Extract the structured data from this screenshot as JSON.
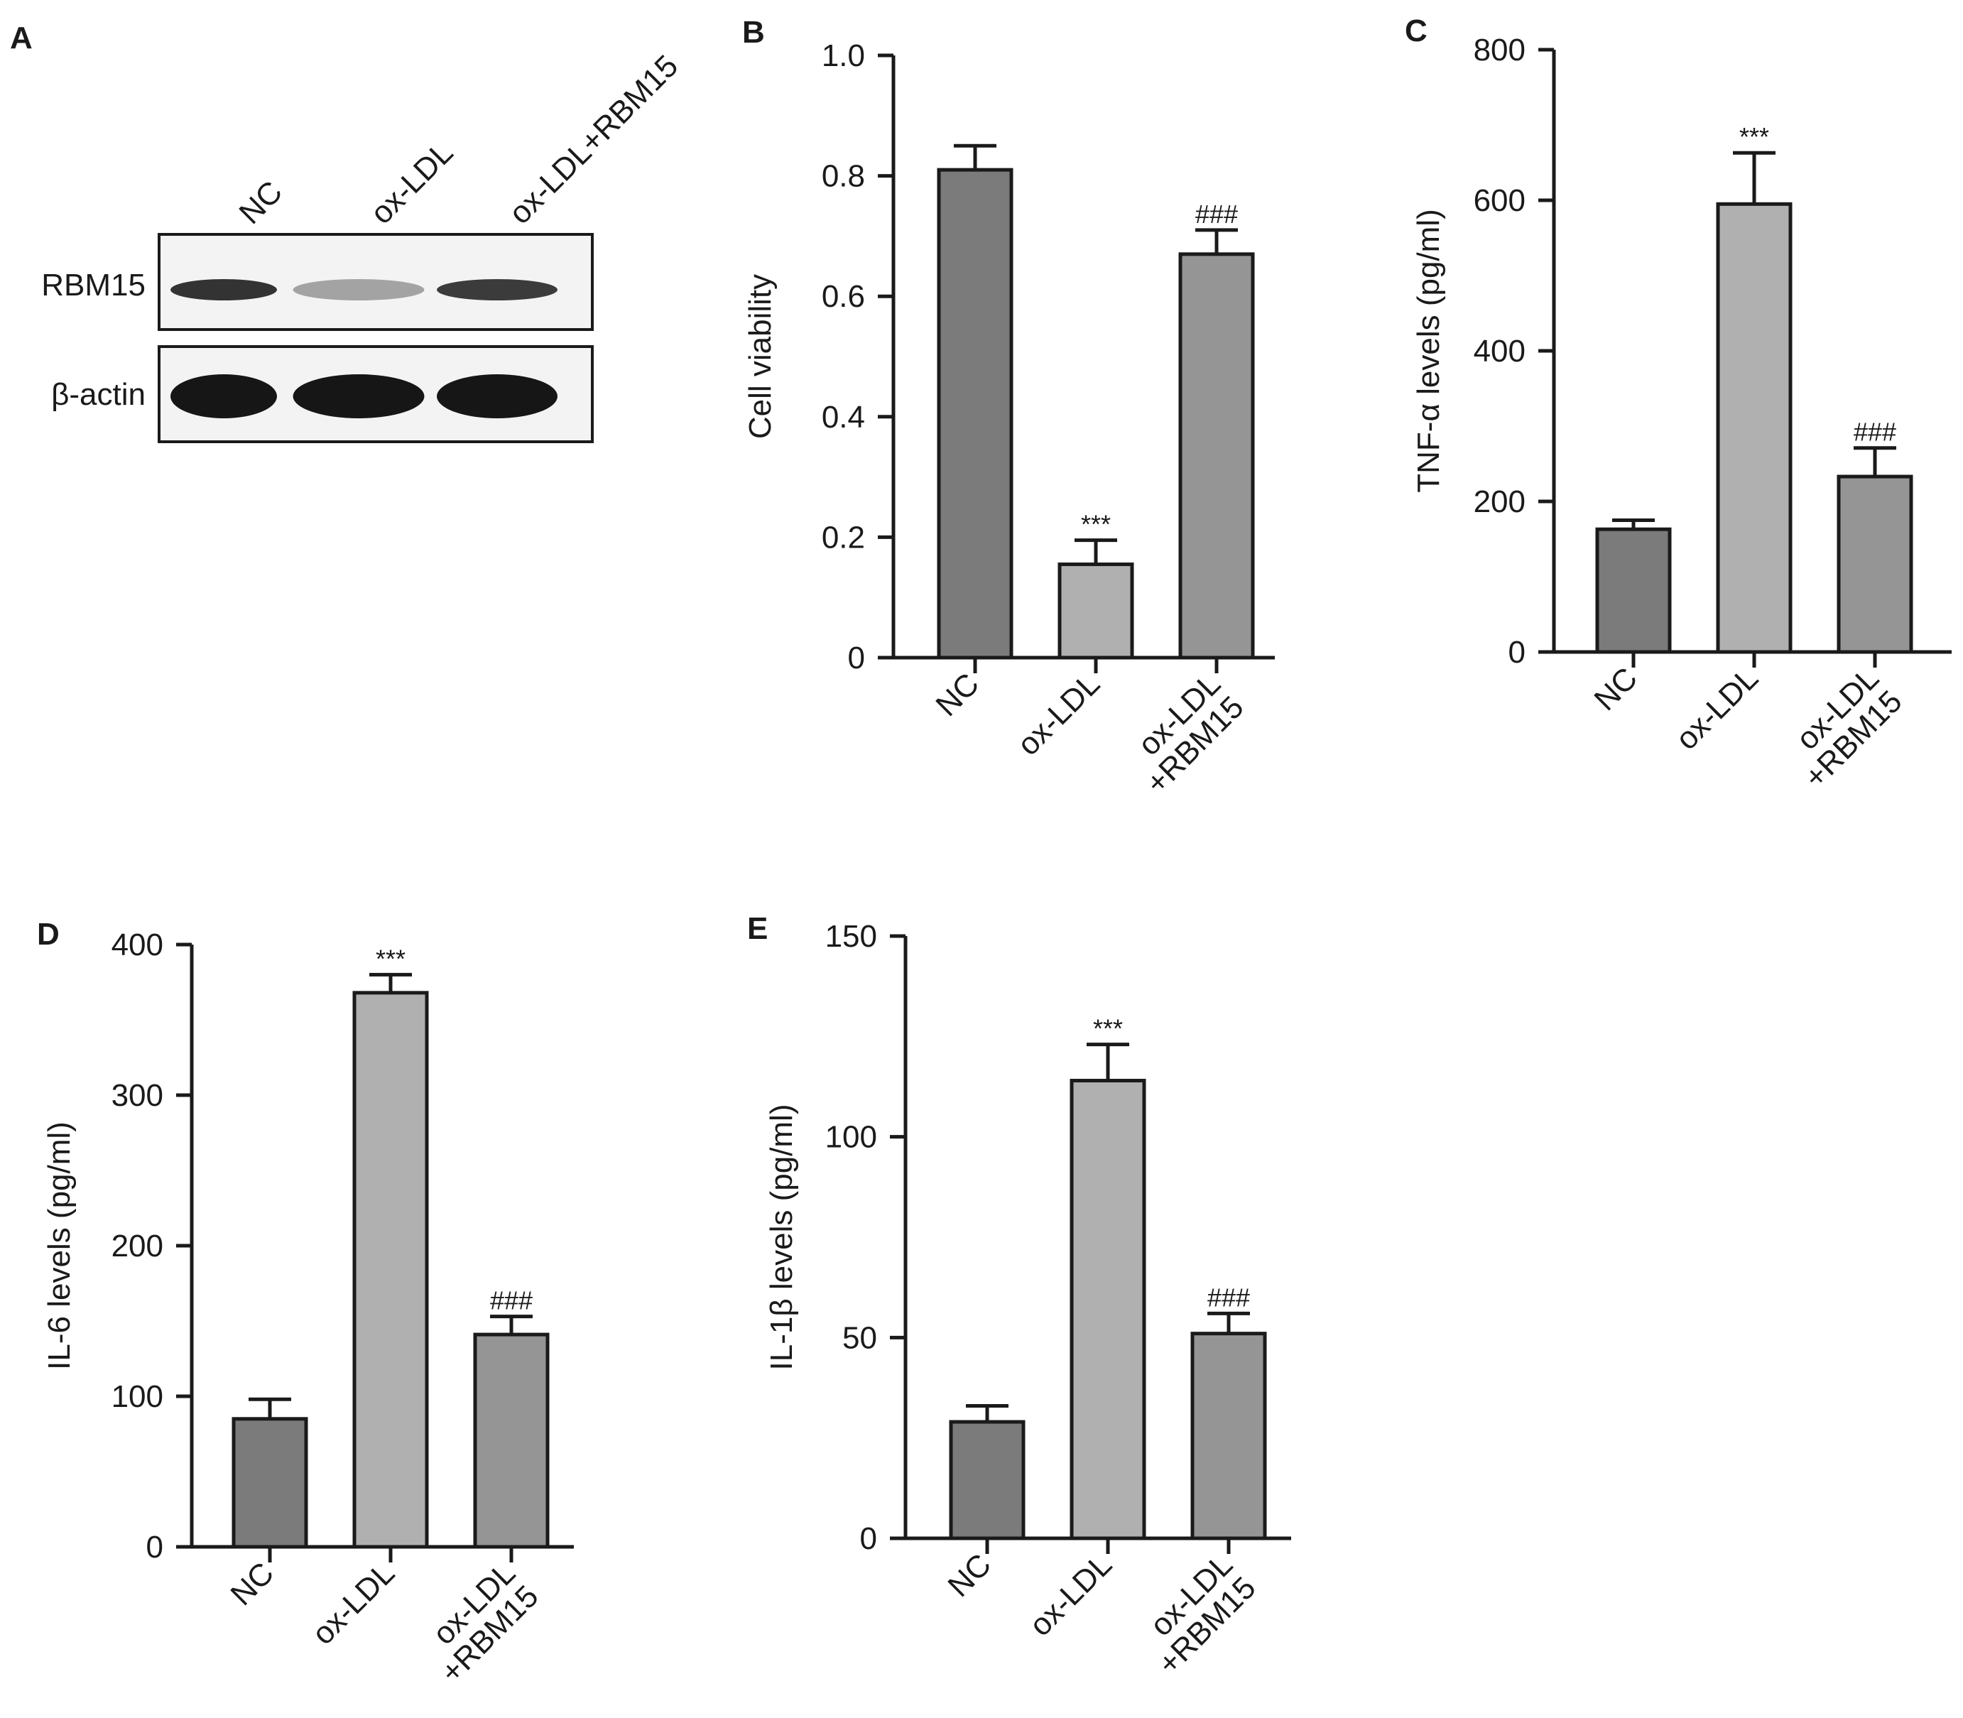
{
  "colors": {
    "NC": "#7b7b7b",
    "ox-LDL": "#b0b0b0",
    "ox-LDL+RBM15": "#959595",
    "axis": "#1a1a1a",
    "band": "#161616"
  },
  "panel_a": {
    "letter": "A",
    "lanes": [
      "NC",
      "ox-LDL",
      "ox-LDL+RBM15"
    ],
    "rows": [
      {
        "label": "RBM15",
        "band_intensity": [
          0.85,
          0.25,
          0.8
        ]
      },
      {
        "label": "β-actin",
        "band_intensity": [
          1.0,
          1.0,
          1.0
        ]
      }
    ]
  },
  "chart_data": [
    {
      "panel": "B",
      "type": "bar",
      "categories": [
        "NC",
        "ox-LDL",
        "ox-LDL\n+RBM15"
      ],
      "values": [
        0.81,
        0.155,
        0.67
      ],
      "errors": [
        0.04,
        0.04,
        0.04
      ],
      "annotations": [
        "",
        "***",
        "###"
      ],
      "ylabel": "Cell viability",
      "ylim": [
        0,
        1.0
      ],
      "yticks": [
        0,
        0.2,
        0.4,
        0.6,
        0.8,
        1.0
      ],
      "ytick_labels": [
        "0",
        "0.2",
        "0.4",
        "0.6",
        "0.8",
        "1.0"
      ]
    },
    {
      "panel": "C",
      "type": "bar",
      "categories": [
        "NC",
        "ox-LDL",
        "ox-LDL\n+RBM15"
      ],
      "values": [
        163,
        595,
        233
      ],
      "errors": [
        12,
        68,
        38
      ],
      "annotations": [
        "",
        "***",
        "###"
      ],
      "ylabel": "TNF-α levels (pg/ml)",
      "ylim": [
        0,
        800
      ],
      "yticks": [
        0,
        200,
        400,
        600,
        800
      ],
      "ytick_labels": [
        "0",
        "200",
        "400",
        "600",
        "800"
      ]
    },
    {
      "panel": "D",
      "type": "bar",
      "categories": [
        "NC",
        "ox-LDL",
        "ox-LDL\n+RBM15"
      ],
      "values": [
        85,
        368,
        141
      ],
      "errors": [
        13,
        12,
        12
      ],
      "annotations": [
        "",
        "***",
        "###"
      ],
      "ylabel": "IL-6 levels (pg/ml)",
      "ylim": [
        0,
        400
      ],
      "yticks": [
        0,
        100,
        200,
        300,
        400
      ],
      "ytick_labels": [
        "0",
        "100",
        "200",
        "300",
        "400"
      ]
    },
    {
      "panel": "E",
      "type": "bar",
      "categories": [
        "NC",
        "ox-LDL",
        "ox-LDL\n+RBM15"
      ],
      "values": [
        29,
        114,
        51
      ],
      "errors": [
        4,
        9,
        5
      ],
      "annotations": [
        "",
        "***",
        "###"
      ],
      "ylabel": "IL-1β levels (pg/ml)",
      "ylim": [
        0,
        150
      ],
      "yticks": [
        0,
        50,
        100,
        150
      ],
      "ytick_labels": [
        "0",
        "50",
        "100",
        "150"
      ]
    }
  ]
}
